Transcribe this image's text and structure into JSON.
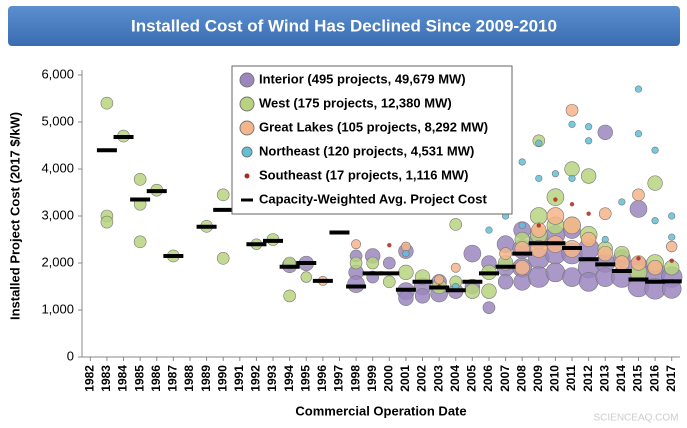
{
  "chart_data": {
    "type": "scatter",
    "title": "Installed Cost of Wind Has Declined Since 2009-2010",
    "x_label": "Commercial Operation Date",
    "y_label": "Installed Project Cost (2017 $/kW)",
    "watermark": "SCIENCEAQ.COM",
    "xlim": [
      1981.5,
      2017.5
    ],
    "xticks": [
      1982,
      1983,
      1984,
      1985,
      1986,
      1987,
      1988,
      1989,
      1990,
      1991,
      1992,
      1993,
      1994,
      1995,
      1996,
      1997,
      1998,
      1999,
      2000,
      2001,
      2002,
      2003,
      2004,
      2005,
      2006,
      2007,
      2008,
      2009,
      2010,
      2011,
      2012,
      2013,
      2014,
      2015,
      2016,
      2017
    ],
    "ylim": [
      0,
      6000
    ],
    "yticks": [
      0,
      {
        "value": 1000,
        "label": "1,000"
      },
      {
        "value": 2000,
        "label": "2,000"
      },
      {
        "value": 3000,
        "label": "3,000"
      },
      {
        "value": 4000,
        "label": "4,000"
      },
      {
        "value": 5000,
        "label": "5,000"
      },
      {
        "value": 6000,
        "label": "6,000"
      }
    ],
    "grid": false,
    "legend": "top",
    "series": [
      {
        "name": "Interior (495 projects, 49,679 MW)",
        "color": "#9b86c0",
        "x": [
          1994,
          1995,
          1998,
          1998,
          1998,
          1999,
          1999,
          2000,
          2001,
          2001,
          2001,
          2002,
          2002,
          2003,
          2003,
          2004,
          2005,
          2005,
          2006,
          2006,
          2007,
          2007,
          2007,
          2008,
          2008,
          2008,
          2008,
          2009,
          2009,
          2009,
          2010,
          2010,
          2010,
          2011,
          2011,
          2011,
          2012,
          2012,
          2012,
          2013,
          2013,
          2013,
          2014,
          2014,
          2015,
          2015,
          2015,
          2016,
          2016,
          2017,
          2017
        ],
        "values": [
          1950,
          1990,
          2150,
          1800,
          1550,
          2150,
          1700,
          2000,
          2250,
          1400,
          1250,
          1500,
          1300,
          1600,
          1350,
          1400,
          2200,
          1500,
          2000,
          1050,
          2400,
          1900,
          1600,
          2700,
          2300,
          1900,
          1600,
          2500,
          2100,
          1700,
          2600,
          2200,
          1800,
          2700,
          2200,
          1700,
          2300,
          1900,
          1600,
          4780,
          2000,
          1700,
          2100,
          1700,
          3150,
          1900,
          1500,
          1800,
          1450,
          1700,
          1450
        ],
        "sizes": [
          150,
          150,
          100,
          150,
          200,
          150,
          100,
          100,
          150,
          200,
          150,
          200,
          150,
          150,
          200,
          150,
          200,
          150,
          150,
          100,
          200,
          200,
          150,
          200,
          250,
          250,
          200,
          250,
          300,
          300,
          250,
          300,
          250,
          200,
          300,
          250,
          300,
          300,
          250,
          150,
          250,
          250,
          200,
          300,
          200,
          300,
          300,
          300,
          300,
          300,
          250
        ]
      },
      {
        "name": "West (175 projects, 12,380 MW)",
        "color": "#b7d37f",
        "x": [
          1983,
          1983,
          1983,
          1984,
          1985,
          1985,
          1985,
          1986,
          1987,
          1989,
          1990,
          1990,
          1992,
          1993,
          1994,
          1994,
          1995,
          1998,
          1999,
          2000,
          2001,
          2002,
          2003,
          2004,
          2004,
          2005,
          2006,
          2006,
          2007,
          2008,
          2009,
          2009,
          2009,
          2010,
          2010,
          2011,
          2011,
          2012,
          2012,
          2013,
          2014,
          2015,
          2016,
          2016,
          2017
        ],
        "values": [
          5400,
          3000,
          2870,
          4700,
          3780,
          3250,
          2450,
          3550,
          2150,
          2780,
          3450,
          2100,
          2400,
          2500,
          2000,
          1300,
          1700,
          2000,
          2000,
          1600,
          1800,
          1700,
          1500,
          2820,
          1600,
          1400,
          1800,
          1400,
          2000,
          2500,
          4600,
          3000,
          2600,
          3400,
          2800,
          4000,
          2800,
          3850,
          2600,
          2300,
          2200,
          1800,
          3700,
          2000,
          1900
        ],
        "sizes": [
          100,
          100,
          100,
          100,
          100,
          100,
          100,
          100,
          100,
          100,
          100,
          100,
          80,
          100,
          100,
          100,
          80,
          100,
          100,
          100,
          150,
          150,
          150,
          100,
          100,
          150,
          150,
          150,
          150,
          150,
          100,
          200,
          200,
          200,
          200,
          150,
          200,
          150,
          200,
          150,
          150,
          200,
          150,
          200,
          150
        ]
      },
      {
        "name": "Great Lakes (105 projects, 8,292 MW)",
        "color": "#f6b48a",
        "x": [
          1996,
          1998,
          2001,
          2003,
          2004,
          2007,
          2008,
          2008,
          2009,
          2009,
          2010,
          2010,
          2011,
          2011,
          2011,
          2012,
          2013,
          2013,
          2014,
          2015,
          2015,
          2016,
          2017
        ],
        "values": [
          1620,
          2400,
          2350,
          1650,
          1900,
          2200,
          2300,
          1900,
          2700,
          2300,
          3000,
          2400,
          5250,
          2800,
          2300,
          2500,
          3050,
          2200,
          2000,
          3450,
          2000,
          1900,
          2350
        ],
        "sizes": [
          60,
          60,
          60,
          60,
          60,
          100,
          150,
          150,
          150,
          200,
          200,
          200,
          100,
          200,
          200,
          150,
          100,
          150,
          150,
          100,
          150,
          150,
          80
        ]
      },
      {
        "name": "Northeast (120 projects, 4,531 MW)",
        "color": "#5fc0d8",
        "x": [
          2001,
          2004,
          2006,
          2007,
          2008,
          2008,
          2009,
          2009,
          2010,
          2011,
          2011,
          2012,
          2012,
          2013,
          2014,
          2015,
          2015,
          2016,
          2016,
          2017,
          2017
        ],
        "values": [
          2200,
          1500,
          2700,
          3000,
          4150,
          2800,
          3800,
          4550,
          3900,
          4950,
          3800,
          4600,
          4900,
          2500,
          3300,
          5700,
          4750,
          4400,
          2900,
          3000,
          2550
        ],
        "sizes": [
          30,
          30,
          30,
          30,
          30,
          30,
          30,
          30,
          30,
          30,
          30,
          30,
          30,
          30,
          30,
          30,
          30,
          30,
          30,
          30,
          30
        ]
      },
      {
        "name": "Southeast (17 projects, 1,116 MW)",
        "color": "#a52a1f",
        "x": [
          2000,
          2003,
          2009,
          2010,
          2011,
          2012,
          2015,
          2017
        ],
        "values": [
          2380,
          1500,
          2800,
          3350,
          3250,
          3050,
          2100,
          2050
        ],
        "sizes": [
          5,
          5,
          5,
          5,
          5,
          5,
          5,
          5
        ]
      },
      {
        "name": "Capacity-Weighted Avg. Project Cost",
        "color": "#000000",
        "marker": "dash",
        "x": [
          1983,
          1984,
          1985,
          1986,
          1987,
          1989,
          1990,
          1992,
          1993,
          1994,
          1995,
          1996,
          1997,
          1998,
          1999,
          2000,
          2001,
          2002,
          2003,
          2004,
          2005,
          2006,
          2007,
          2008,
          2009,
          2010,
          2011,
          2012,
          2013,
          2014,
          2015,
          2016,
          2017
        ],
        "values": [
          4400,
          4680,
          3350,
          3530,
          2150,
          2770,
          3130,
          2400,
          2470,
          1920,
          2000,
          1620,
          2650,
          1500,
          1780,
          1780,
          1430,
          1600,
          1480,
          1420,
          1600,
          1780,
          1920,
          2200,
          2420,
          2420,
          2320,
          2080,
          1970,
          1830,
          1650,
          1600,
          1610
        ]
      }
    ]
  }
}
